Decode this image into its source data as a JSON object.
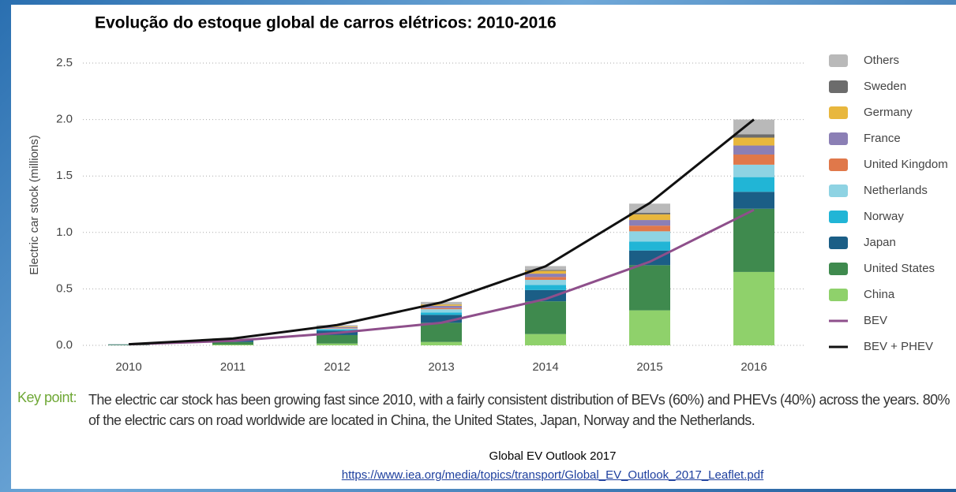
{
  "chart_data": {
    "type": "stacked-bar-line",
    "title": "Evolução do estoque global de carros elétricos: 2010-2016",
    "y_label": "Electric car stock (millions)",
    "categories": [
      "2010",
      "2011",
      "2012",
      "2013",
      "2014",
      "2015",
      "2016"
    ],
    "ylim": [
      0,
      2.5
    ],
    "yticks": [
      {
        "value": 0,
        "label": "0.0"
      },
      0.5,
      {
        "value": 1,
        "label": "1.0"
      },
      1.5,
      {
        "value": 2,
        "label": "2.0"
      },
      2.5
    ],
    "grid": true,
    "legend": "right",
    "series": [
      {
        "name": "China",
        "color": "#8fd16b",
        "kind": "bar",
        "values": [
          0.001,
          0.007,
          0.016,
          0.03,
          0.1,
          0.31,
          0.65
        ]
      },
      {
        "name": "United States",
        "color": "#3f8a4e",
        "kind": "bar",
        "values": [
          0.004,
          0.022,
          0.075,
          0.17,
          0.29,
          0.4,
          0.56
        ]
      },
      {
        "name": "Japan",
        "color": "#1b5e86",
        "kind": "bar",
        "values": [
          0.003,
          0.016,
          0.04,
          0.07,
          0.1,
          0.13,
          0.15
        ]
      },
      {
        "name": "Norway",
        "color": "#21b5d6",
        "kind": "bar",
        "values": [
          0.001,
          0.004,
          0.01,
          0.02,
          0.045,
          0.08,
          0.13
        ]
      },
      {
        "name": "Netherlands",
        "color": "#8ed3e3",
        "kind": "bar",
        "values": [
          0.0003,
          0.001,
          0.007,
          0.03,
          0.045,
          0.09,
          0.11
        ]
      },
      {
        "name": "United Kingdom",
        "color": "#e0784a",
        "kind": "bar",
        "values": [
          0.0003,
          0.001,
          0.004,
          0.01,
          0.025,
          0.05,
          0.09
        ]
      },
      {
        "name": "France",
        "color": "#8b7fb5",
        "kind": "bar",
        "values": [
          0.0003,
          0.003,
          0.01,
          0.02,
          0.03,
          0.05,
          0.08
        ]
      },
      {
        "name": "Germany",
        "color": "#e8b73d",
        "kind": "bar",
        "values": [
          0.0003,
          0.002,
          0.006,
          0.012,
          0.025,
          0.05,
          0.07
        ]
      },
      {
        "name": "Sweden",
        "color": "#6c6c6c",
        "kind": "bar",
        "values": [
          0.0001,
          0.0003,
          0.001,
          0.003,
          0.007,
          0.015,
          0.03
        ]
      },
      {
        "name": "Others",
        "color": "#b9b9b9",
        "kind": "bar",
        "values": [
          0.001,
          0.005,
          0.01,
          0.02,
          0.035,
          0.08,
          0.13
        ]
      },
      {
        "name": "BEV",
        "color": "#8e4f8b",
        "kind": "line",
        "values": [
          0.01,
          0.04,
          0.11,
          0.2,
          0.41,
          0.74,
          1.2
        ]
      },
      {
        "name": "BEV + PHEV",
        "color": "#111111",
        "kind": "line",
        "values": [
          0.01,
          0.06,
          0.18,
          0.38,
          0.7,
          1.26,
          2.0
        ]
      }
    ],
    "key_point_label": "Key point:",
    "key_point": "The electric car stock has been growing fast since 2010, with a fairly consistent distribution of BEVs (60%) and PHEVs (40%) across the years. 80% of the electric cars on road worldwide are located in China, the United States, Japan, Norway and the Netherlands.",
    "source": "Global EV Outlook 2017",
    "source_url": "https://www.iea.org/media/topics/transport/Global_EV_Outlook_2017_Leaflet.pdf"
  }
}
